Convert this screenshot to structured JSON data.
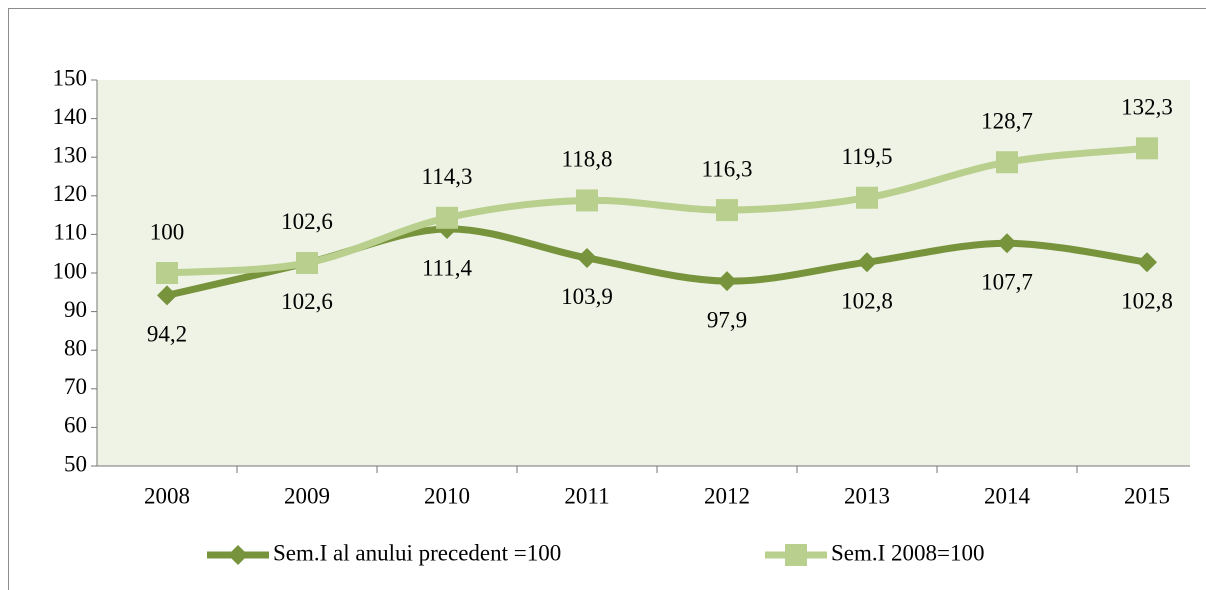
{
  "chart_data": {
    "type": "line",
    "categories": [
      "2008",
      "2009",
      "2010",
      "2011",
      "2012",
      "2013",
      "2014",
      "2015"
    ],
    "series": [
      {
        "name": "Sem.I  al anului precedent =100",
        "color": "#77933c",
        "marker": "diamond",
        "values": [
          94.2,
          102.6,
          111.4,
          103.9,
          97.9,
          102.8,
          107.7,
          102.8
        ],
        "value_labels": [
          "94,2",
          "102,6",
          "111,4",
          "103,9",
          "97,9",
          "102,8",
          "107,7",
          "102,8"
        ]
      },
      {
        "name": "Sem.I  2008=100",
        "color": "#b9cf8d",
        "marker": "square",
        "values": [
          100,
          102.6,
          114.3,
          118.8,
          116.3,
          119.5,
          128.7,
          132.3
        ],
        "value_labels": [
          "100",
          "102,6",
          "114,3",
          "118,8",
          "116,3",
          "119,5",
          "128,7",
          "132,3"
        ]
      }
    ],
    "ylim": [
      50,
      150
    ],
    "yticks": [
      50,
      60,
      70,
      80,
      90,
      100,
      110,
      120,
      130,
      140,
      150
    ],
    "legend": "bottom"
  }
}
